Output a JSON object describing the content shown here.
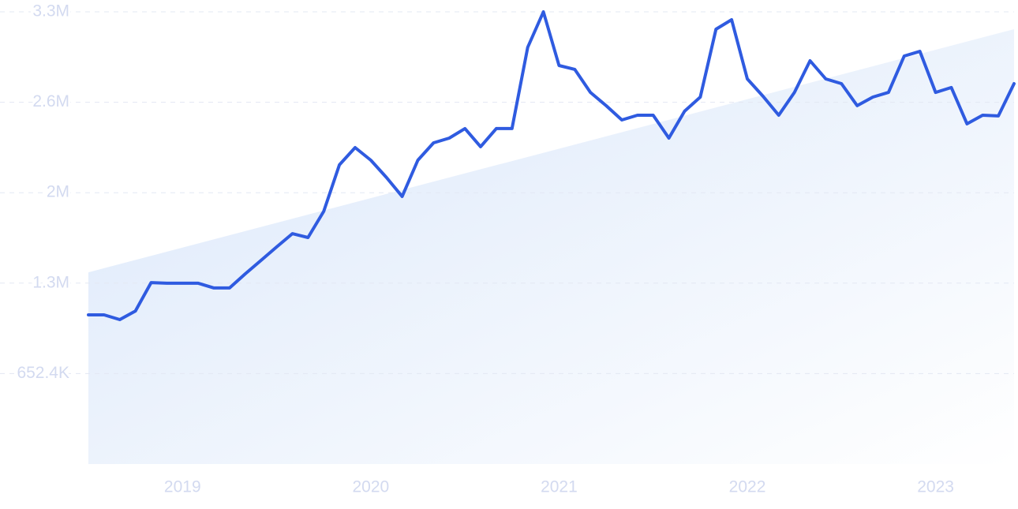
{
  "chart_data": {
    "type": "line",
    "categories": [
      null,
      null,
      null,
      null,
      null,
      null,
      "2019",
      null,
      null,
      null,
      null,
      null,
      null,
      null,
      null,
      null,
      null,
      null,
      "2020",
      null,
      null,
      null,
      null,
      null,
      null,
      null,
      null,
      null,
      null,
      null,
      "2021",
      null,
      null,
      null,
      null,
      null,
      null,
      null,
      null,
      null,
      null,
      null,
      "2022",
      null,
      null,
      null,
      null,
      null,
      null,
      null,
      null,
      null,
      null,
      null,
      "2023",
      null,
      null,
      null,
      null,
      null
    ],
    "series": [
      {
        "color": "#2f5be0",
        "values": [
          1076000,
          1076000,
          1042000,
          1104000,
          1309000,
          1304000,
          1304000,
          1304000,
          1270000,
          1270000,
          1372000,
          1469000,
          1566000,
          1662000,
          1634000,
          1822000,
          2158000,
          2283000,
          2192000,
          2067000,
          1930000,
          2192000,
          2317000,
          2351000,
          2420000,
          2289000,
          2420000,
          2420000,
          3006000,
          3262000,
          2875000,
          2847000,
          2681000,
          2585000,
          2482000,
          2516000,
          2516000,
          2351000,
          2545000,
          2647000,
          3137000,
          3205000,
          2778000,
          2653000,
          2516000,
          2681000,
          2909000,
          2778000,
          2744000,
          2585000,
          2647000,
          2681000,
          2943000,
          2977000,
          2681000,
          2716000,
          2454000,
          2516000,
          2511000,
          2744000
        ]
      }
    ],
    "trend": {
      "color": "#dce8fa",
      "values": [
        1383000,
        3137000
      ]
    },
    "ylim": [
      0,
      3262000
    ],
    "yticks": [
      {
        "value": 652400,
        "label": "652.4K"
      },
      {
        "value": 1304800,
        "label": "1.3M"
      },
      {
        "value": 1957200,
        "label": "2M"
      },
      {
        "value": 2609600,
        "label": "2.6M"
      },
      {
        "value": 3262000,
        "label": "3.3M"
      }
    ],
    "grid": true
  }
}
